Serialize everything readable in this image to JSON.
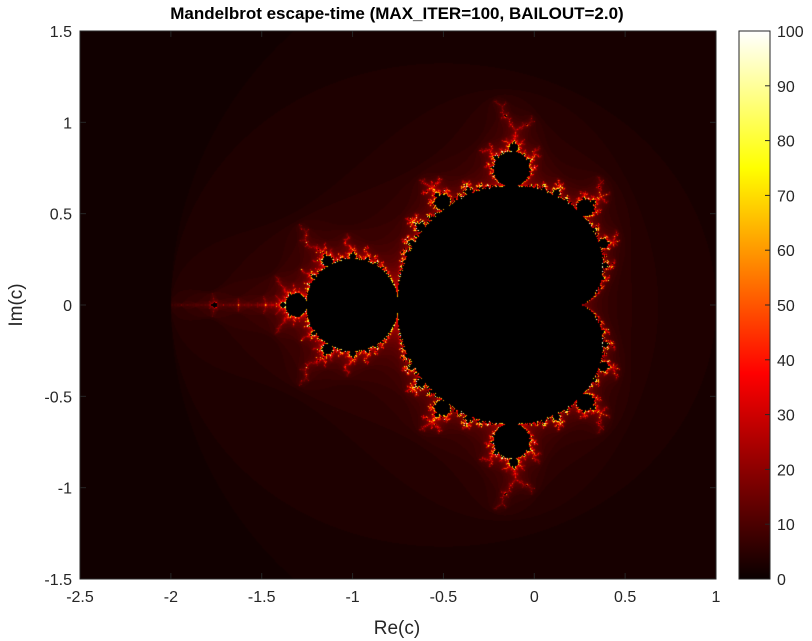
{
  "chart_data": {
    "type": "heatmap",
    "title": "Mandelbrot  escape-time  (MAX_ITER=100,  BAILOUT=2.0)",
    "xlabel": "Re(c)",
    "ylabel": "Im(c)",
    "xlim": [
      -2.5,
      1
    ],
    "ylim": [
      -1.5,
      1.5
    ],
    "x_ticks": [
      -2.5,
      -2,
      -1.5,
      -1,
      -0.5,
      0,
      0.5,
      1
    ],
    "x_tick_labels": [
      "-2.5",
      "-2",
      "-1.5",
      "-1",
      "-0.5",
      "0",
      "0.5",
      "1"
    ],
    "y_ticks": [
      -1.5,
      -1,
      -0.5,
      0,
      0.5,
      1,
      1.5
    ],
    "y_tick_labels": [
      "-1.5",
      "-1",
      "-0.5",
      "0",
      "0.5",
      "1",
      "1.5"
    ],
    "max_iter": 100,
    "bailout": 2.0,
    "colormap": "hot",
    "colorbar": {
      "range": [
        0,
        100
      ],
      "ticks": [
        0,
        10,
        20,
        30,
        40,
        50,
        60,
        70,
        80,
        90,
        100
      ],
      "tick_labels": [
        "0",
        "10",
        "20",
        "30",
        "40",
        "50",
        "60",
        "70",
        "80",
        "90",
        "100"
      ]
    },
    "grid": false
  }
}
